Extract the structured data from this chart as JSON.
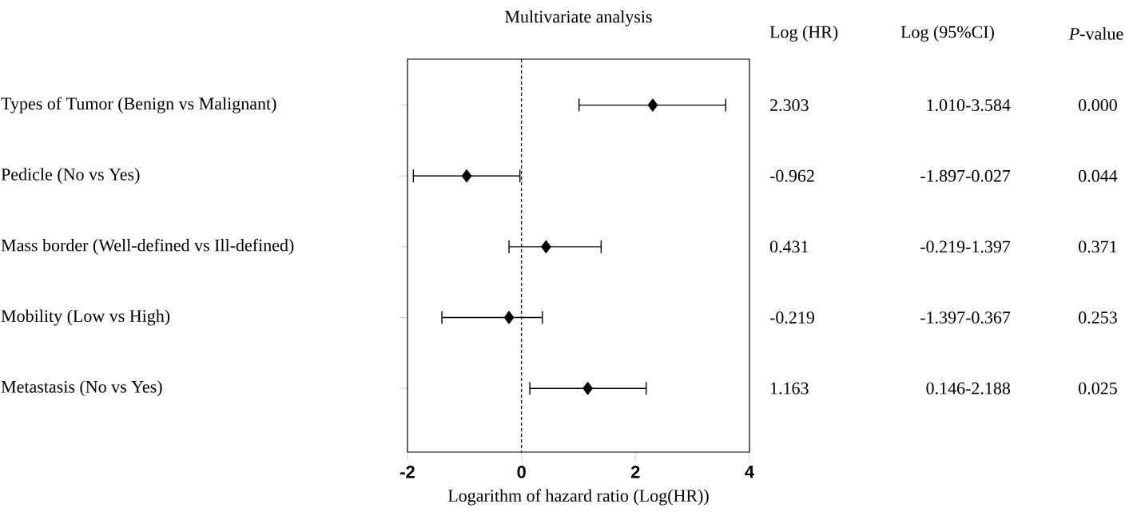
{
  "chart_data": {
    "type": "scatter",
    "orientation": "horizontal",
    "title": "Multivariate analysis",
    "xlabel": "Logarithm of hazard ratio (Log(HR))",
    "categories": [
      "Types of Tumor (Benign vs Malignant)",
      "Pedicle (No vs Yes)",
      "Mass border (Well-defined vs Ill-defined)",
      "Mobility (Low vs High)",
      "Metastasis (No vs Yes)"
    ],
    "values": [
      2.303,
      -0.962,
      0.431,
      -0.219,
      1.163
    ],
    "errors": [
      [
        1.01,
        3.584
      ],
      [
        -1.897,
        -0.027
      ],
      [
        -0.219,
        1.397
      ],
      [
        -1.397,
        0.367
      ],
      [
        0.146,
        2.188
      ]
    ],
    "value_labels": [
      "2.303",
      "-0.962",
      "0.431",
      "-0.219",
      "1.163"
    ],
    "color": "#000000",
    "marker": "diamond",
    "xlim": [
      -2,
      4
    ],
    "xticks": [
      -2,
      0,
      2,
      4
    ],
    "ref_lines": [
      {
        "axis": "x",
        "value": 0,
        "line_style": "dashed",
        "color": "#000000"
      }
    ],
    "annotations": [
      "Log (HR)",
      "Log (95%CI)",
      "*P*-value",
      "1.010-3.584",
      "-1.897-0.027",
      "-0.219-1.397",
      "-1.397-0.367",
      "0.146-2.188",
      "0.000",
      "0.044",
      "0.371",
      "0.253",
      "0.025"
    ]
  }
}
